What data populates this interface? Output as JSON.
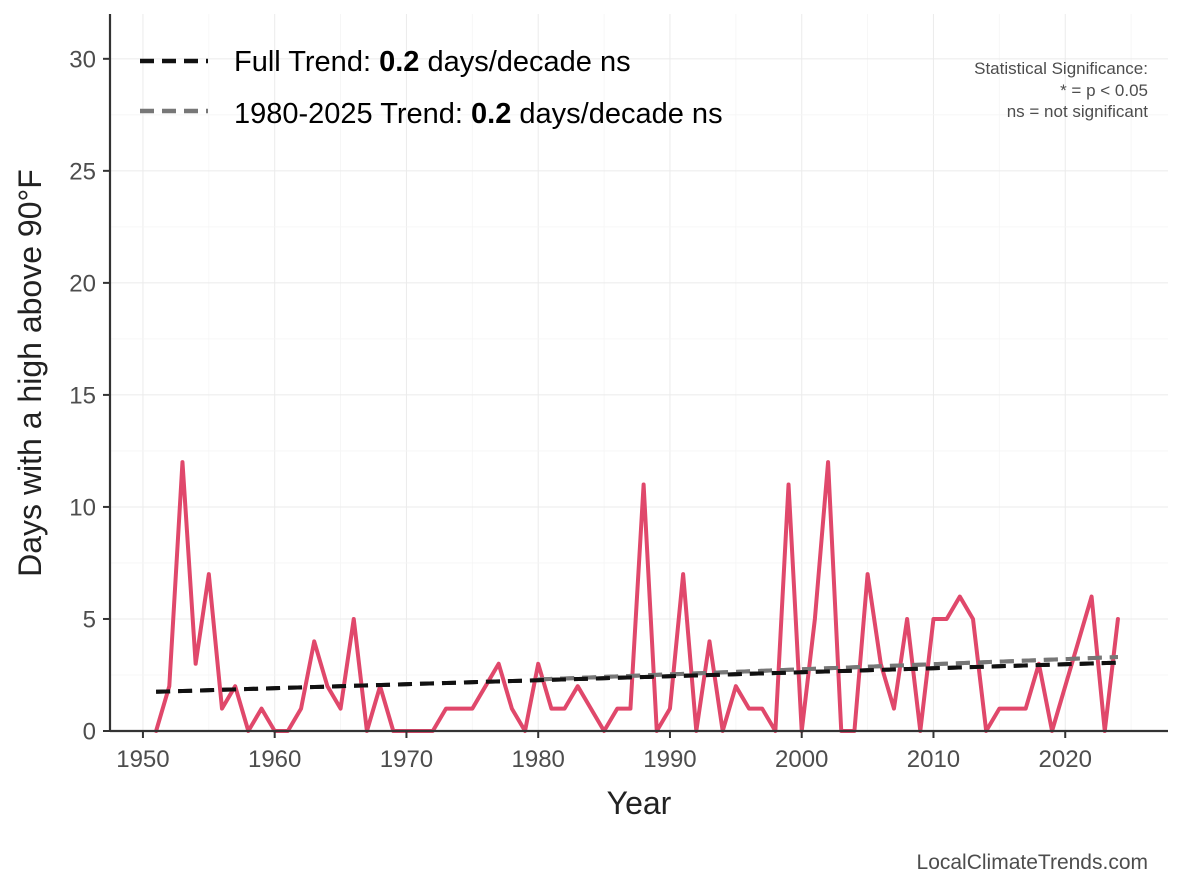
{
  "chart_data": {
    "type": "line",
    "xlabel": "Year",
    "ylabel": "Days with a high above 90°F",
    "xlim": [
      1947.5,
      2027.8
    ],
    "ylim": [
      0,
      32
    ],
    "x_ticks": [
      1950,
      1960,
      1970,
      1980,
      1990,
      2000,
      2010,
      2020
    ],
    "y_ticks": [
      0,
      5,
      10,
      15,
      20,
      25,
      30
    ],
    "grid": true,
    "series": [
      {
        "color": "#e0486b",
        "x": [
          1951,
          1952,
          1953,
          1954,
          1955,
          1956,
          1957,
          1958,
          1959,
          1960,
          1961,
          1962,
          1963,
          1964,
          1965,
          1966,
          1967,
          1968,
          1969,
          1970,
          1971,
          1972,
          1973,
          1974,
          1975,
          1976,
          1977,
          1978,
          1979,
          1980,
          1981,
          1982,
          1983,
          1984,
          1985,
          1986,
          1987,
          1988,
          1989,
          1990,
          1991,
          1992,
          1993,
          1994,
          1995,
          1996,
          1997,
          1998,
          1999,
          2000,
          2001,
          2002,
          2003,
          2004,
          2005,
          2006,
          2007,
          2008,
          2009,
          2010,
          2011,
          2012,
          2013,
          2014,
          2015,
          2016,
          2017,
          2018,
          2019,
          2020,
          2021,
          2022,
          2023,
          2024
        ],
        "values": [
          0,
          2,
          12,
          3,
          7,
          1,
          2,
          0,
          1,
          0,
          0,
          1,
          4,
          2,
          1,
          5,
          0,
          2,
          0,
          0,
          0,
          0,
          1,
          1,
          1,
          2,
          3,
          1,
          0,
          3,
          1,
          1,
          2,
          1,
          0,
          1,
          1,
          11,
          0,
          1,
          7,
          0,
          4,
          0,
          2,
          1,
          1,
          0,
          11,
          0,
          5,
          12,
          0,
          0,
          7,
          3,
          1,
          5,
          0,
          5,
          5,
          6,
          5,
          0,
          1,
          1,
          1,
          3,
          0,
          2,
          4,
          6,
          0,
          5
        ]
      }
    ],
    "trends": [
      {
        "label": "Full Trend:",
        "value": "0.2",
        "suffix": "days/decade ns",
        "x": [
          1951,
          2024
        ],
        "y": [
          1.75,
          3.05
        ],
        "color": "#111111"
      },
      {
        "label": "1980-2025 Trend:",
        "value": "0.2",
        "suffix": "days/decade ns",
        "x": [
          1980,
          2024
        ],
        "y": [
          2.3,
          3.3
        ],
        "color": "#777777"
      }
    ],
    "significance_note": [
      "Statistical Significance:",
      "* = p < 0.05",
      "ns = not significant"
    ],
    "credit": "LocalClimateTrends.com"
  }
}
